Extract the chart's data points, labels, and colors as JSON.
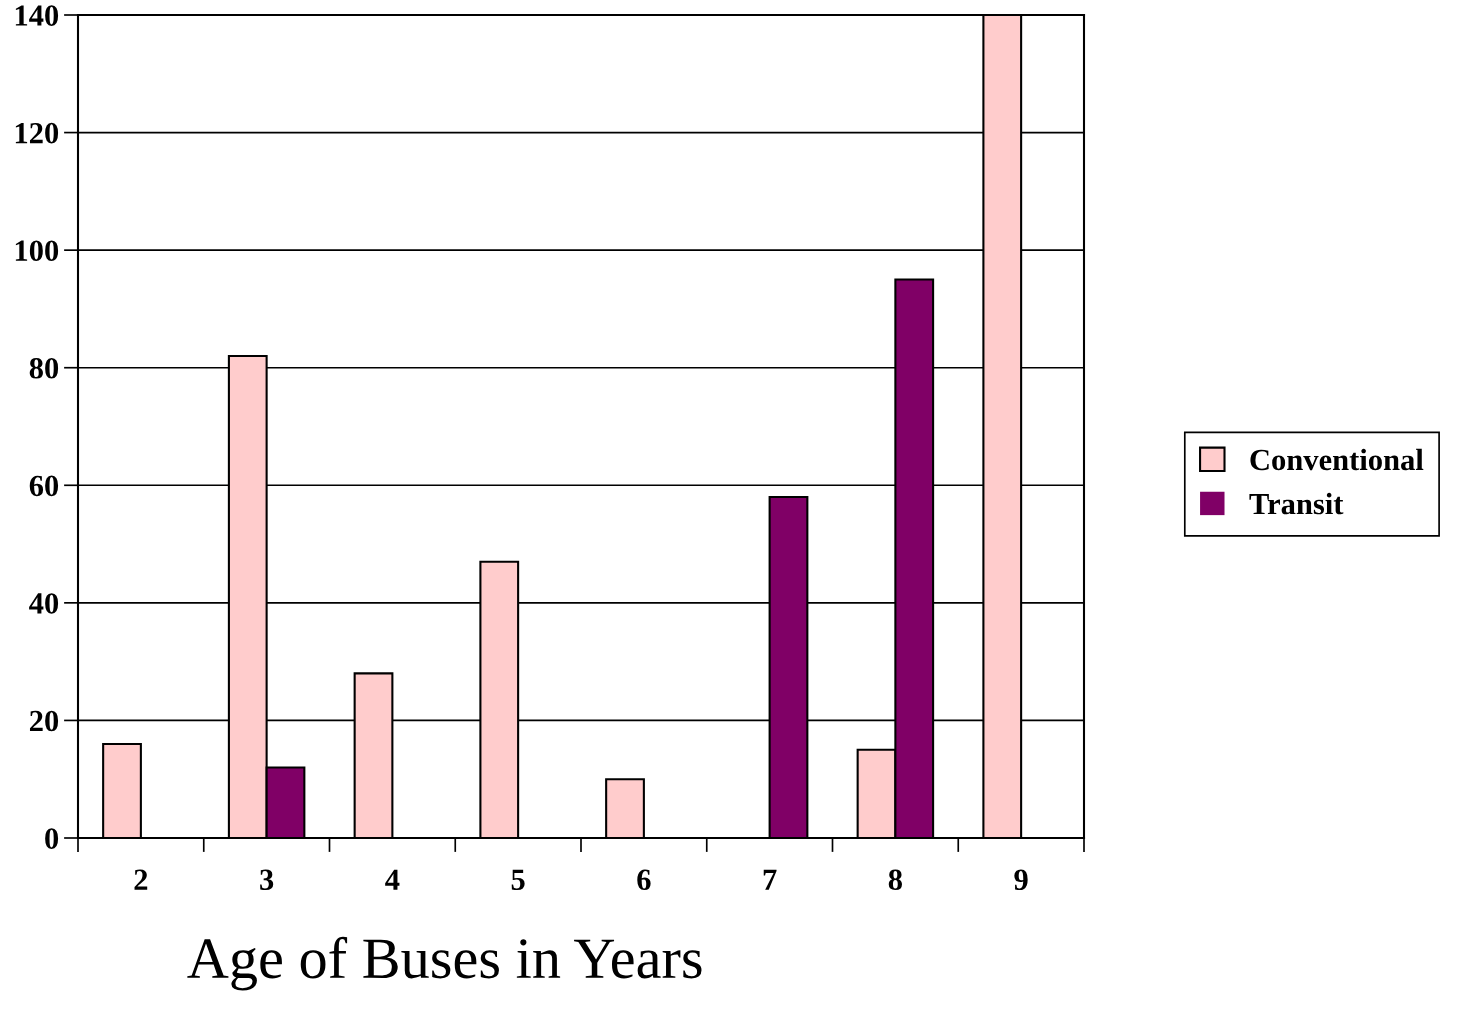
{
  "chart_data": {
    "type": "bar",
    "xlabel": "Age of Buses in Years",
    "categories": [
      "2",
      "3",
      "4",
      "5",
      "6",
      "7",
      "8",
      "9"
    ],
    "series": [
      {
        "name": "Conventional",
        "color": "#ffcccc",
        "values": [
          16,
          82,
          28,
          47,
          10,
          0,
          15,
          140
        ]
      },
      {
        "name": "Transit",
        "color": "#800066",
        "values": [
          0,
          12,
          0,
          0,
          0,
          58,
          95,
          0
        ]
      }
    ],
    "ylim": [
      0,
      140
    ],
    "yticks": [
      0,
      20,
      40,
      60,
      80,
      100,
      120,
      140
    ],
    "grid": "y",
    "legend": "right"
  }
}
